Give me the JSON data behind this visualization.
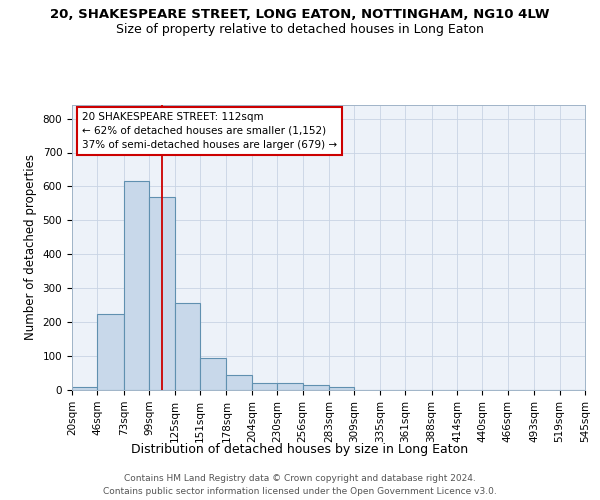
{
  "title_line1": "20, SHAKESPEARE STREET, LONG EATON, NOTTINGHAM, NG10 4LW",
  "title_line2": "Size of property relative to detached houses in Long Eaton",
  "xlabel": "Distribution of detached houses by size in Long Eaton",
  "ylabel": "Number of detached properties",
  "bin_edges": [
    20,
    46,
    73,
    99,
    125,
    151,
    178,
    204,
    230,
    256,
    283,
    309,
    335,
    361,
    388,
    414,
    440,
    466,
    493,
    519,
    545
  ],
  "bar_heights": [
    10,
    225,
    615,
    570,
    255,
    95,
    45,
    20,
    20,
    15,
    8,
    0,
    0,
    0,
    0,
    0,
    0,
    0,
    0,
    0
  ],
  "bar_color": "#c8d8ea",
  "bar_edge_color": "#6090b0",
  "bar_edge_width": 0.8,
  "grid_color": "#c8d4e4",
  "bg_color": "#edf2f9",
  "property_size": 112,
  "red_line_color": "#cc0000",
  "annotation_text": "20 SHAKESPEARE STREET: 112sqm\n← 62% of detached houses are smaller (1,152)\n37% of semi-detached houses are larger (679) →",
  "annotation_box_color": "white",
  "annotation_box_edge_color": "#cc0000",
  "ylim": [
    0,
    840
  ],
  "yticks": [
    0,
    100,
    200,
    300,
    400,
    500,
    600,
    700,
    800
  ],
  "footer_line1": "Contains HM Land Registry data © Crown copyright and database right 2024.",
  "footer_line2": "Contains public sector information licensed under the Open Government Licence v3.0.",
  "title_fontsize": 9.5,
  "subtitle_fontsize": 9,
  "xlabel_fontsize": 9,
  "ylabel_fontsize": 8.5,
  "tick_fontsize": 7.5,
  "annotation_fontsize": 7.5,
  "footer_fontsize": 6.5
}
